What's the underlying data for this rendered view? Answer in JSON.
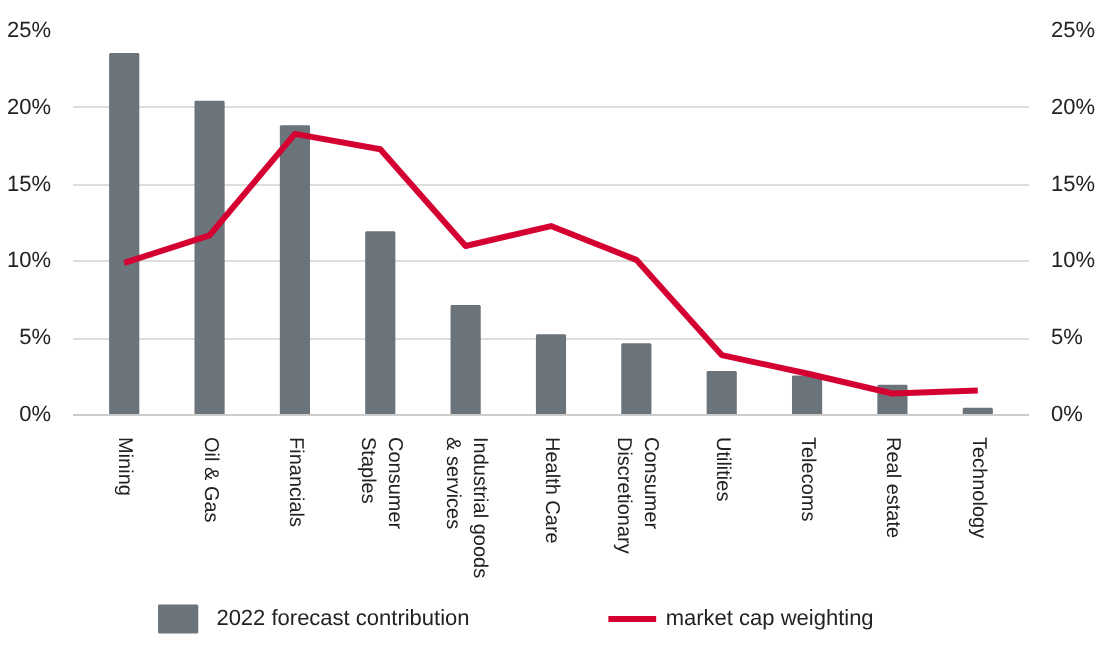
{
  "chart_data": {
    "type": "bar",
    "categories": [
      "Mining",
      "Oil & Gas",
      "Financials",
      "Consumer\nStaples",
      "Industrial goods\n& services",
      "Health Care",
      "Consumer\nDiscretionary",
      "Utilities",
      "Telecoms",
      "Real estate",
      "Technology"
    ],
    "series": [
      {
        "name": "2022 forecast contribution",
        "color": "#6b737b",
        "values": [
          23.5,
          20.4,
          18.8,
          11.9,
          7.1,
          5.2,
          4.6,
          2.8,
          2.5,
          1.9,
          0.4
        ]
      },
      {
        "name": "market cap weighting",
        "type": "line",
        "axis": "y2",
        "color": "#d50032",
        "values": [
          9.9,
          11.7,
          18.3,
          17.3,
          11.0,
          12.3,
          10.1,
          3.9,
          2.7,
          1.4,
          1.6
        ]
      }
    ],
    "ylim": [
      0,
      25
    ],
    "yticks": [
      {
        "value": 0,
        "label": "0%"
      },
      {
        "value": 5,
        "label": "5%"
      },
      {
        "value": 10,
        "label": "10%"
      },
      {
        "value": 15,
        "label": "15%"
      },
      {
        "value": 20,
        "label": "20%"
      },
      {
        "value": 25,
        "label": "25%"
      }
    ],
    "y2lim": [
      0,
      25
    ],
    "y2ticks": [
      {
        "value": 0,
        "label": "0%"
      },
      {
        "value": 5,
        "label": "5%"
      },
      {
        "value": 10,
        "label": "10%"
      },
      {
        "value": 15,
        "label": "15%"
      },
      {
        "value": 20,
        "label": "20%"
      },
      {
        "value": 25,
        "label": "25%"
      }
    ],
    "grid": "y",
    "legend": "bottom",
    "marker": "none",
    "line_style": "solid"
  }
}
